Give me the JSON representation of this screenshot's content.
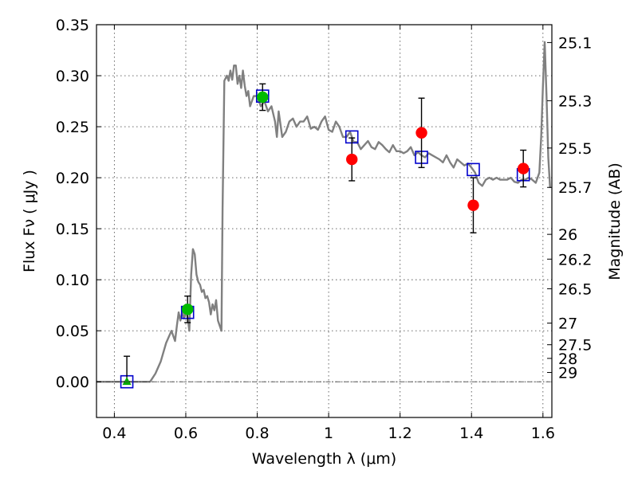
{
  "chart_data": {
    "type": "scatter",
    "xlabel": "Wavelength  λ (μm)",
    "ylabel": "Flux  Fν  ( μJy )",
    "y2label": "Magnitude (AB)",
    "xlim": [
      0.35,
      1.625
    ],
    "ylim": [
      -0.035,
      0.35
    ],
    "grid": true,
    "x_ticks": [
      {
        "value": 0.4,
        "label": "0.4"
      },
      {
        "value": 0.6,
        "label": "0.6"
      },
      {
        "value": 0.8,
        "label": "0.8"
      },
      {
        "value": 1.0,
        "label": "1"
      },
      {
        "value": 1.2,
        "label": "1.2"
      },
      {
        "value": 1.4,
        "label": "1.4"
      },
      {
        "value": 1.6,
        "label": "1.6"
      }
    ],
    "y_ticks": [
      {
        "value": 0.0,
        "label": "0.00"
      },
      {
        "value": 0.05,
        "label": "0.05"
      },
      {
        "value": 0.1,
        "label": "0.10"
      },
      {
        "value": 0.15,
        "label": "0.15"
      },
      {
        "value": 0.2,
        "label": "0.20"
      },
      {
        "value": 0.25,
        "label": "0.25"
      },
      {
        "value": 0.3,
        "label": "0.30"
      },
      {
        "value": 0.35,
        "label": "0.35"
      }
    ],
    "y2_ticks": [
      {
        "label": "25.1",
        "flux": 0.3325
      },
      {
        "label": "25.3",
        "flux": 0.2755
      },
      {
        "label": "25.5",
        "flux": 0.2291
      },
      {
        "label": "25.7",
        "flux": 0.1905
      },
      {
        "label": "26",
        "flux": 0.1445
      },
      {
        "label": "26.2",
        "flux": 0.1202
      },
      {
        "label": "26.5",
        "flux": 0.0912
      },
      {
        "label": "27",
        "flux": 0.0575
      },
      {
        "label": "27.5",
        "flux": 0.0363
      },
      {
        "label": "28",
        "flux": 0.0229
      },
      {
        "label": "29",
        "flux": 0.0091
      }
    ],
    "series": [
      {
        "kind": "line",
        "color": "#808080",
        "x": [
          0.35,
          0.5,
          0.515,
          0.53,
          0.545,
          0.56,
          0.57,
          0.575,
          0.58,
          0.585,
          0.59,
          0.595,
          0.6,
          0.605,
          0.61,
          0.615,
          0.62,
          0.625,
          0.63,
          0.635,
          0.64,
          0.645,
          0.65,
          0.655,
          0.66,
          0.665,
          0.67,
          0.675,
          0.68,
          0.685,
          0.69,
          0.695,
          0.7,
          0.703,
          0.708,
          0.715,
          0.72,
          0.725,
          0.73,
          0.735,
          0.74,
          0.745,
          0.75,
          0.755,
          0.76,
          0.765,
          0.77,
          0.775,
          0.78,
          0.79,
          0.8,
          0.81,
          0.82,
          0.83,
          0.84,
          0.85,
          0.855,
          0.86,
          0.87,
          0.88,
          0.89,
          0.9,
          0.91,
          0.92,
          0.93,
          0.94,
          0.95,
          0.96,
          0.97,
          0.98,
          0.99,
          1.0,
          1.01,
          1.02,
          1.03,
          1.04,
          1.05,
          1.06,
          1.07,
          1.08,
          1.09,
          1.1,
          1.11,
          1.12,
          1.13,
          1.14,
          1.15,
          1.16,
          1.17,
          1.18,
          1.19,
          1.2,
          1.21,
          1.22,
          1.23,
          1.24,
          1.25,
          1.26,
          1.27,
          1.28,
          1.29,
          1.3,
          1.31,
          1.32,
          1.33,
          1.34,
          1.35,
          1.36,
          1.37,
          1.38,
          1.39,
          1.4,
          1.41,
          1.42,
          1.43,
          1.44,
          1.45,
          1.46,
          1.47,
          1.48,
          1.49,
          1.5,
          1.51,
          1.52,
          1.53,
          1.54,
          1.55,
          1.56,
          1.57,
          1.58,
          1.59,
          1.595,
          1.6,
          1.605,
          1.61,
          1.615,
          1.62
        ],
        "y": [
          0.0,
          0.0,
          0.008,
          0.02,
          0.038,
          0.05,
          0.04,
          0.055,
          0.068,
          0.06,
          0.068,
          0.062,
          0.07,
          0.064,
          0.05,
          0.105,
          0.13,
          0.125,
          0.105,
          0.098,
          0.095,
          0.088,
          0.09,
          0.082,
          0.084,
          0.078,
          0.066,
          0.076,
          0.07,
          0.08,
          0.06,
          0.055,
          0.05,
          0.17,
          0.295,
          0.3,
          0.295,
          0.305,
          0.296,
          0.31,
          0.31,
          0.292,
          0.3,
          0.288,
          0.305,
          0.29,
          0.28,
          0.285,
          0.27,
          0.28,
          0.28,
          0.27,
          0.275,
          0.265,
          0.27,
          0.255,
          0.24,
          0.265,
          0.24,
          0.245,
          0.255,
          0.258,
          0.25,
          0.255,
          0.255,
          0.26,
          0.248,
          0.25,
          0.247,
          0.255,
          0.26,
          0.247,
          0.245,
          0.255,
          0.25,
          0.24,
          0.24,
          0.245,
          0.235,
          0.235,
          0.228,
          0.232,
          0.236,
          0.23,
          0.228,
          0.235,
          0.232,
          0.228,
          0.225,
          0.232,
          0.226,
          0.226,
          0.224,
          0.226,
          0.23,
          0.222,
          0.225,
          0.222,
          0.22,
          0.224,
          0.222,
          0.22,
          0.218,
          0.215,
          0.222,
          0.215,
          0.21,
          0.218,
          0.215,
          0.212,
          0.214,
          0.21,
          0.205,
          0.195,
          0.192,
          0.198,
          0.2,
          0.198,
          0.2,
          0.198,
          0.198,
          0.198,
          0.2,
          0.196,
          0.195,
          0.198,
          0.198,
          0.2,
          0.198,
          0.195,
          0.205,
          0.24,
          0.29,
          0.333,
          0.28,
          0.22,
          0.19
        ]
      },
      {
        "kind": "squares",
        "color": "#0000cc",
        "x": [
          0.435,
          0.605,
          0.815,
          1.065,
          1.26,
          1.405,
          1.545
        ],
        "y": [
          0.0,
          0.068,
          0.28,
          0.24,
          0.22,
          0.208,
          0.203
        ]
      },
      {
        "kind": "errorbars",
        "color": "#000000",
        "points": [
          {
            "x": 0.435,
            "y": 0.0,
            "yerr_low": 0.0,
            "yerr_high": 0.025
          },
          {
            "x": 0.605,
            "y": 0.071,
            "yerr_low": 0.013,
            "yerr_high": 0.013
          },
          {
            "x": 0.815,
            "y": 0.279,
            "yerr_low": 0.013,
            "yerr_high": 0.013
          },
          {
            "x": 1.065,
            "y": 0.218,
            "yerr_low": 0.021,
            "yerr_high": 0.021
          },
          {
            "x": 1.26,
            "y": 0.244,
            "yerr_low": 0.034,
            "yerr_high": 0.034
          },
          {
            "x": 1.405,
            "y": 0.173,
            "yerr_low": 0.027,
            "yerr_high": 0.027
          },
          {
            "x": 1.545,
            "y": 0.209,
            "yerr_low": 0.018,
            "yerr_high": 0.018
          }
        ]
      },
      {
        "kind": "circles",
        "color": "#00bb00",
        "x": [
          0.605,
          0.815
        ],
        "y": [
          0.071,
          0.279
        ]
      },
      {
        "kind": "circles",
        "color": "#ff0000",
        "x": [
          1.065,
          1.26,
          1.405,
          1.545
        ],
        "y": [
          0.218,
          0.244,
          0.173,
          0.209
        ]
      },
      {
        "kind": "triangles",
        "color": "#00aa00",
        "x": [
          0.435
        ],
        "y": [
          0.0
        ]
      }
    ]
  }
}
